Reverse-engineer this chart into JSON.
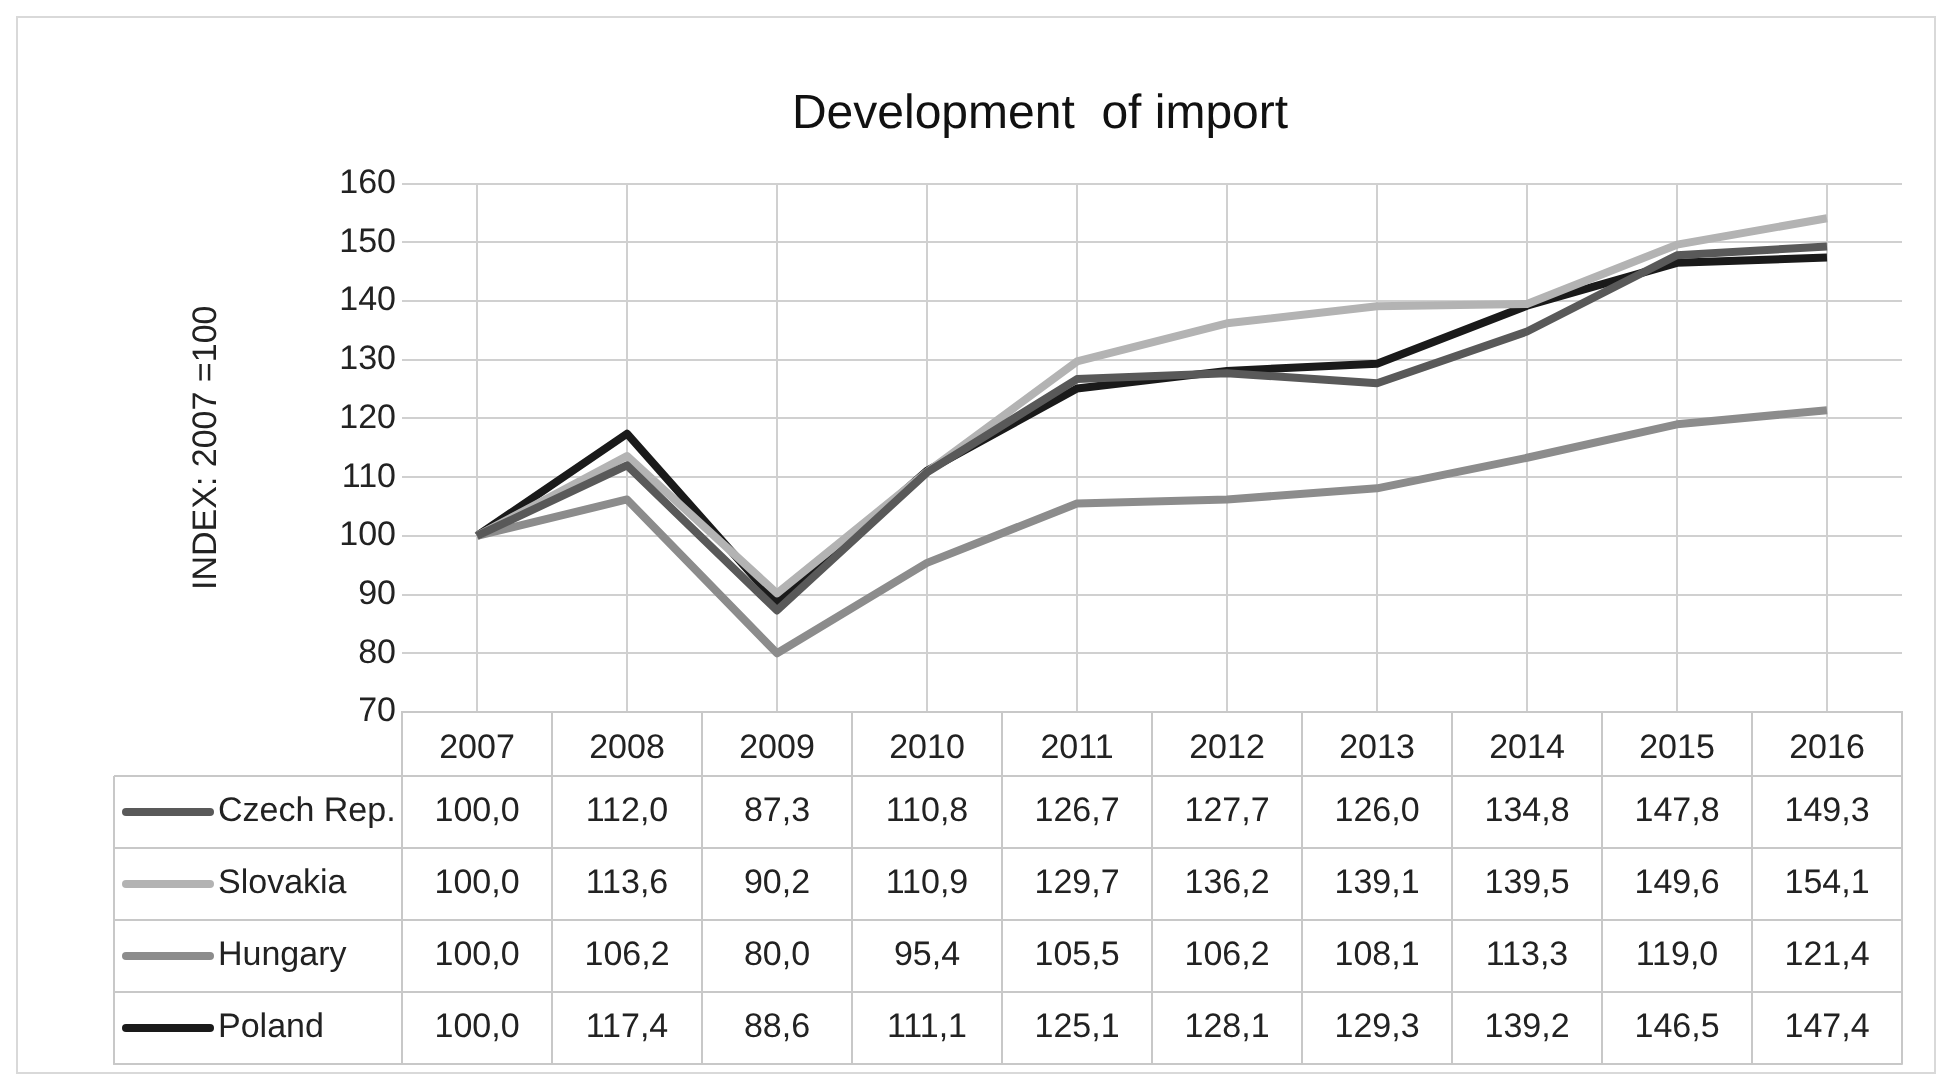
{
  "chart_data": {
    "type": "line",
    "title": "Development  of import",
    "ylabel": "INDEX: 2007 =100",
    "categories": [
      "2007",
      "2008",
      "2009",
      "2010",
      "2011",
      "2012",
      "2013",
      "2014",
      "2015",
      "2016"
    ],
    "series": [
      {
        "name": "Czech Rep.",
        "color": "#595959",
        "values": [
          100.0,
          112.0,
          87.3,
          110.8,
          126.7,
          127.7,
          126.0,
          134.8,
          147.8,
          149.3
        ],
        "value_labels": [
          "100,0",
          "112,0",
          "87,3",
          "110,8",
          "126,7",
          "127,7",
          "126,0",
          "134,8",
          "147,8",
          "149,3"
        ]
      },
      {
        "name": "Slovakia",
        "color": "#b3b3b3",
        "values": [
          100.0,
          113.6,
          90.2,
          110.9,
          129.7,
          136.2,
          139.1,
          139.5,
          149.6,
          154.1
        ],
        "value_labels": [
          "100,0",
          "113,6",
          "90,2",
          "110,9",
          "129,7",
          "136,2",
          "139,1",
          "139,5",
          "149,6",
          "154,1"
        ]
      },
      {
        "name": "Hungary",
        "color": "#8c8c8c",
        "values": [
          100.0,
          106.2,
          80.0,
          95.4,
          105.5,
          106.2,
          108.1,
          113.3,
          119.0,
          121.4
        ],
        "value_labels": [
          "100,0",
          "106,2",
          "80,0",
          "95,4",
          "105,5",
          "106,2",
          "108,1",
          "113,3",
          "119,0",
          "121,4"
        ]
      },
      {
        "name": "Poland",
        "color": "#1a1a1a",
        "values": [
          100.0,
          117.4,
          88.6,
          111.1,
          125.1,
          128.1,
          129.3,
          139.2,
          146.5,
          147.4
        ],
        "value_labels": [
          "100,0",
          "117,4",
          "88,6",
          "111,1",
          "125,1",
          "128,1",
          "129,3",
          "139,2",
          "146,5",
          "147,4"
        ]
      }
    ],
    "ylim": [
      70,
      160
    ],
    "yticks": [
      70,
      80,
      90,
      100,
      110,
      120,
      130,
      140,
      150,
      160
    ],
    "grid": true,
    "legend": "bottom",
    "marker": "none",
    "line_style": "solid"
  }
}
